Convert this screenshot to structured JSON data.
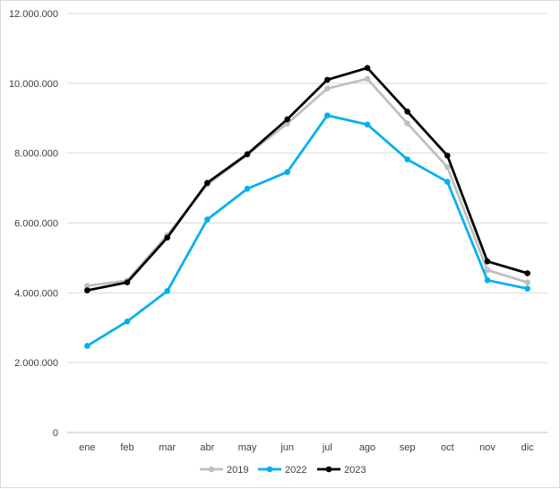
{
  "chart_data": {
    "type": "line",
    "title": "",
    "xlabel": "",
    "ylabel": "",
    "categories": [
      "ene",
      "feb",
      "mar",
      "abr",
      "may",
      "jun",
      "jul",
      "ago",
      "sep",
      "oct",
      "nov",
      "dic"
    ],
    "ylim": [
      0,
      12000000
    ],
    "yticks": [
      0,
      2000000,
      4000000,
      6000000,
      8000000,
      10000000,
      12000000
    ],
    "ytick_labels": [
      "0",
      "2.000.000",
      "4.000.000",
      "6.000.000",
      "8.000.000",
      "10.000.000",
      "12.000.000"
    ],
    "grid": "horizontal",
    "legend_position": "bottom",
    "series": [
      {
        "name": "2019",
        "color": "#bfbfbf",
        "values": [
          4200000,
          4350000,
          5650000,
          7100000,
          7950000,
          8850000,
          9850000,
          10130000,
          8850000,
          7600000,
          4650000,
          4300000
        ]
      },
      {
        "name": "2022",
        "color": "#00b0f0",
        "values": [
          2480000,
          3180000,
          4050000,
          6100000,
          6980000,
          7460000,
          9080000,
          8820000,
          7820000,
          7180000,
          4360000,
          4120000
        ]
      },
      {
        "name": "2023",
        "color": "#000000",
        "values": [
          4070000,
          4300000,
          5580000,
          7150000,
          7970000,
          8970000,
          10100000,
          10440000,
          9190000,
          7930000,
          4900000,
          4560000
        ]
      }
    ]
  }
}
